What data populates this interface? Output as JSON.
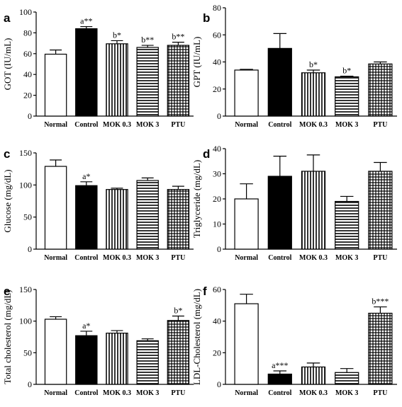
{
  "chart_data": [
    {
      "type": "bar",
      "panel": "a",
      "ylabel": "GOT (IU/mL)",
      "categories": [
        "Normal",
        "Control",
        "MOK 0.3",
        "MOK 3",
        "PTU"
      ],
      "values": [
        59.5,
        84,
        69.5,
        66,
        68
      ],
      "errors": [
        4,
        2,
        3,
        2,
        3
      ],
      "annotations": [
        "",
        "a**",
        "b*",
        "b**",
        "b**"
      ],
      "yticks": [
        "0",
        "20",
        "40",
        "60",
        "80",
        "100"
      ],
      "ylim": [
        0,
        100
      ]
    },
    {
      "type": "bar",
      "panel": "b",
      "ylabel": "GPT (IU/mL)",
      "categories": [
        "Normal",
        "Control",
        "MOK 0.3",
        "MOK 3",
        "PTU"
      ],
      "values": [
        34,
        50,
        32,
        29,
        38.5
      ],
      "errors": [
        0.5,
        11,
        2,
        0.5,
        1.5
      ],
      "annotations": [
        "",
        "",
        "b*",
        "b*",
        ""
      ],
      "yticks": [
        "0",
        "20",
        "40",
        "60",
        "80"
      ],
      "ylim": [
        0,
        80
      ]
    },
    {
      "type": "bar",
      "panel": "c",
      "ylabel": "Glucose (mg/dL)",
      "categories": [
        "Normal",
        "Control",
        "MOK 0.3",
        "MOK 3",
        "PTU"
      ],
      "values": [
        129,
        99,
        93,
        107,
        93
      ],
      "errors": [
        10,
        6,
        2,
        4,
        5
      ],
      "annotations": [
        "",
        "a*",
        "",
        "",
        ""
      ],
      "yticks": [
        "0",
        "50",
        "100",
        "150"
      ],
      "ylim": [
        0,
        150
      ]
    },
    {
      "type": "bar",
      "panel": "d",
      "ylabel": "Triglyceride (mg/dL)",
      "categories": [
        "Normal",
        "Control",
        "MOK 0.3",
        "MOK 3",
        "PTU"
      ],
      "values": [
        20,
        29,
        31,
        19,
        31
      ],
      "errors": [
        6,
        8,
        6.5,
        2,
        3.5
      ],
      "annotations": [
        "",
        "",
        "",
        "",
        ""
      ],
      "yticks": [
        "0",
        "10",
        "20",
        "30",
        "40"
      ],
      "ylim": [
        0,
        40
      ]
    },
    {
      "type": "bar",
      "panel": "e",
      "ylabel": "Total cholesterol (mg/dL)",
      "categories": [
        "Normal",
        "Control",
        "MOK 0.3",
        "MOK 3",
        "PTU"
      ],
      "values": [
        103,
        77,
        81,
        69,
        101
      ],
      "errors": [
        4,
        7,
        4,
        3,
        7
      ],
      "annotations": [
        "",
        "a*",
        "",
        "",
        "b*"
      ],
      "yticks": [
        "0",
        "50",
        "100",
        "150"
      ],
      "ylim": [
        0,
        150
      ]
    },
    {
      "type": "bar",
      "panel": "f",
      "ylabel": "LDL-Cholesterol (mg/dL)",
      "categories": [
        "Normal",
        "Control",
        "MOK 0.3",
        "MOK 3",
        "PTU"
      ],
      "values": [
        51,
        6.5,
        11,
        7.5,
        45
      ],
      "errors": [
        6,
        2,
        2.5,
        2.5,
        4
      ],
      "annotations": [
        "",
        "a***",
        "",
        "",
        "b***"
      ],
      "yticks": [
        "0",
        "20",
        "40",
        "60"
      ],
      "ylim": [
        0,
        60
      ]
    }
  ]
}
